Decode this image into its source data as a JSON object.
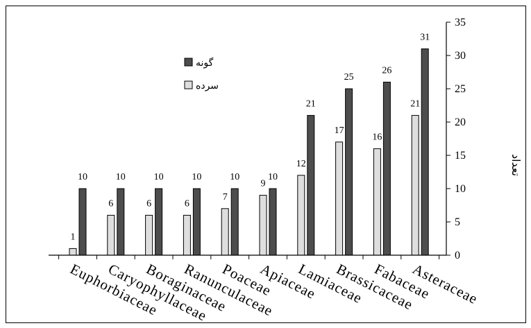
{
  "chart_data": {
    "type": "bar",
    "categories": [
      "Euphorbiaceae",
      "Caryophyllaceae",
      "Boraginaceae",
      "Ranunculaceae",
      "Poaceae",
      "Apiaceae",
      "Lamiaceae",
      "Brassicaceae",
      "Fabaceae",
      "Asteraceae"
    ],
    "series": [
      {
        "name": "سرده",
        "values": [
          1,
          6,
          6,
          6,
          7,
          9,
          12,
          17,
          16,
          21
        ],
        "color": "#dedede"
      },
      {
        "name": "گونه",
        "values": [
          10,
          10,
          10,
          10,
          10,
          10,
          21,
          25,
          26,
          31
        ],
        "color": "#4d4d4d"
      }
    ],
    "title": "",
    "xlabel": "",
    "ylabel": "تعداد",
    "ylim": [
      0,
      35
    ],
    "yticks": [
      0,
      5,
      10,
      15,
      20,
      25,
      30,
      35
    ],
    "y_axis_side": "right",
    "legend_position": "top-left",
    "grid": false,
    "data_labels": true
  }
}
